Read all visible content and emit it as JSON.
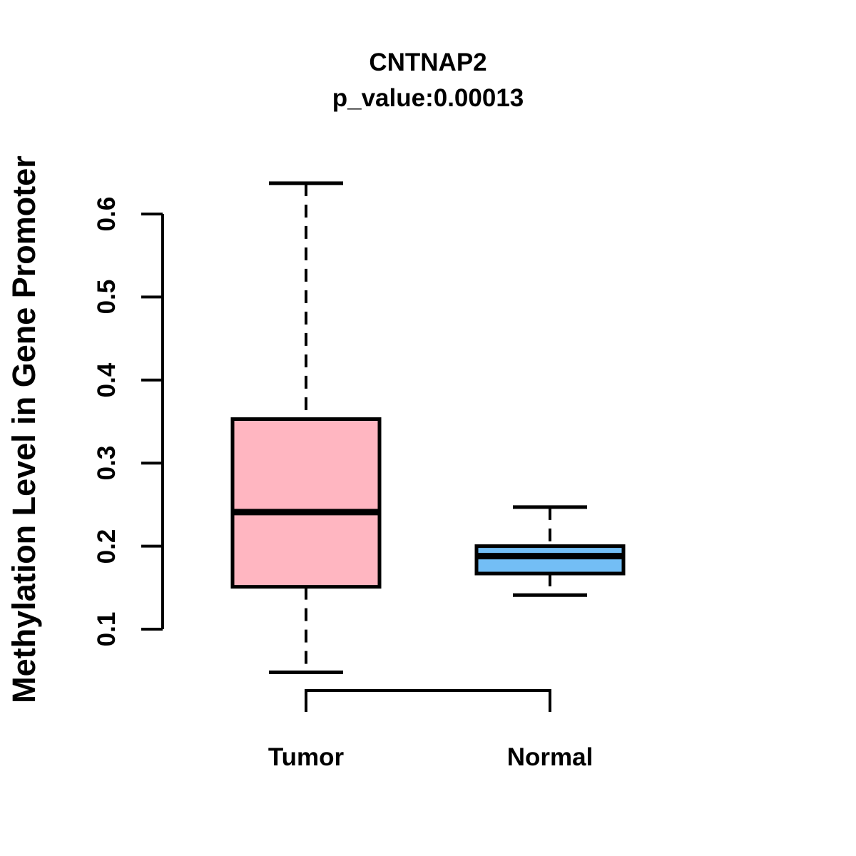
{
  "chart_data": {
    "type": "boxplot",
    "title": "CNTNAP2",
    "subtitle": "p_value:0.00013",
    "ylabel": "Methylation Level in Gene Promoter",
    "xlabel": "",
    "yticks": [
      "0.1",
      "0.2",
      "0.3",
      "0.4",
      "0.5",
      "0.6"
    ],
    "ylim": [
      0.1,
      0.6
    ],
    "grid": false,
    "legend": "none",
    "background_color": "#FFFFFF",
    "axis_color": "#000000",
    "groups": [
      {
        "label": "Tumor",
        "fill_color": "#FFB6C1",
        "border_color": "#000000",
        "whisker_low": 0.048,
        "q1": 0.151,
        "median": 0.241,
        "q3": 0.353,
        "whisker_high": 0.637,
        "outliers": []
      },
      {
        "label": "Normal",
        "fill_color": "#73BEF5",
        "border_color": "#000000",
        "whisker_low": 0.141,
        "q1": 0.167,
        "median": 0.188,
        "q3": 0.2,
        "whisker_high": 0.247,
        "outliers": []
      }
    ]
  }
}
